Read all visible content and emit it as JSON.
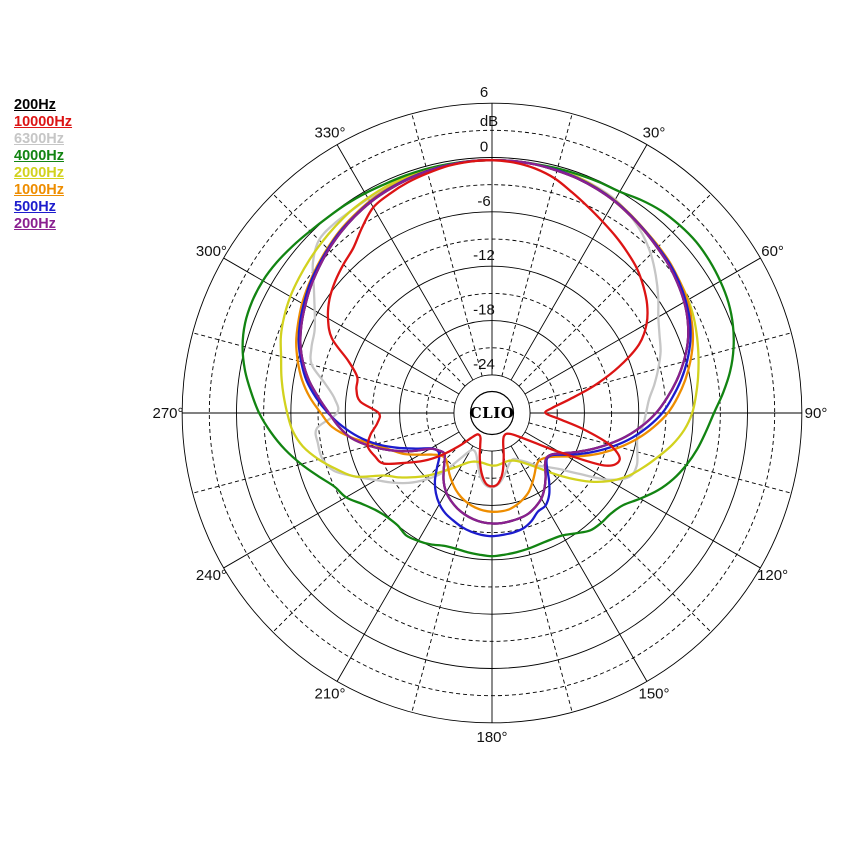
{
  "legend": {
    "items": [
      {
        "label": "200Hz",
        "color": "#000000"
      },
      {
        "label": "10000Hz",
        "color": "#dc1414"
      },
      {
        "label": "6300Hz",
        "color": "#c6c6c6"
      },
      {
        "label": "4000Hz",
        "color": "#128412"
      },
      {
        "label": "2000Hz",
        "color": "#d2d21e"
      },
      {
        "label": "1000Hz",
        "color": "#ee8d00"
      },
      {
        "label": "500Hz",
        "color": "#1c1ccd"
      },
      {
        "label": "200Hz",
        "color": "#8a2090"
      }
    ]
  },
  "chart_data": {
    "type": "line",
    "subtype": "polar-directivity",
    "center_label": "CLIO",
    "angle_step_deg": 5,
    "angle_tick_labels": [
      {
        "deg": 30,
        "label": "30°"
      },
      {
        "deg": 60,
        "label": "60°"
      },
      {
        "deg": 90,
        "label": "90°"
      },
      {
        "deg": 120,
        "label": "120°"
      },
      {
        "deg": 150,
        "label": "150°"
      },
      {
        "deg": 180,
        "label": "180°"
      },
      {
        "deg": 210,
        "label": "210°"
      },
      {
        "deg": 240,
        "label": "240°"
      },
      {
        "deg": 270,
        "label": "270°"
      },
      {
        "deg": 300,
        "label": "300°"
      },
      {
        "deg": 330,
        "label": "330°"
      }
    ],
    "radial_axis": {
      "unit_label": "dB",
      "max_db": 6,
      "min_db": -27,
      "ring_values_db": [
        6,
        3,
        0,
        -3,
        -6,
        -9,
        -12,
        -15,
        -18,
        -21,
        -24
      ],
      "tick_labels": [
        {
          "db": 6,
          "label": "6"
        },
        {
          "db": 0,
          "label": "0"
        },
        {
          "db": -6,
          "label": "-6"
        },
        {
          "db": -12,
          "label": "-12"
        },
        {
          "db": -18,
          "label": "-18"
        },
        {
          "db": -24,
          "label": "-24"
        }
      ]
    },
    "series": [
      {
        "name": "200Hz",
        "color": "#000000",
        "z": 0,
        "values_db": [
          -0.3,
          -0.3,
          -0.35,
          -0.5,
          -0.65,
          -0.9,
          -1.2,
          -1.6,
          -2.0,
          -2.4,
          -2.75,
          -3.2,
          -3.7,
          -4.35,
          -5.2,
          -6.3,
          -7.5,
          -8.8,
          -10.1,
          -11.6,
          -13.2,
          -14.9,
          -16.5,
          -18.0,
          -19.3,
          -20.2,
          -20.4,
          -19.9,
          -19.0,
          -18.1,
          -17.3,
          -16.8,
          -16.4,
          -16.2,
          -16.1,
          -16.0,
          -16.0,
          -16.1,
          -16.3,
          -16.6,
          -17.0,
          -17.5,
          -18.1,
          -18.9,
          -19.9,
          -20.8,
          -21.3,
          -21.0,
          -20.3,
          -18.2,
          -16.2,
          -14.2,
          -12.4,
          -11.2,
          -10.2,
          -9.0,
          -7.7,
          -6.6,
          -5.7,
          -5.0,
          -4.4,
          -3.8,
          -3.25,
          -2.7,
          -2.2,
          -1.75,
          -1.35,
          -1.05,
          -0.8,
          -0.6,
          -0.45,
          -0.32
        ]
      },
      {
        "name": "6300Hz",
        "color": "#c6c6c6",
        "z": 1,
        "values_db": [
          -0.3,
          -0.3,
          -0.35,
          -0.4,
          -0.5,
          -0.7,
          -1.0,
          -1.6,
          -2.4,
          -3.4,
          -4.6,
          -5.8,
          -7.0,
          -7.8,
          -8.4,
          -9.2,
          -10.0,
          -10.8,
          -11.2,
          -11.5,
          -11.9,
          -11.6,
          -11.2,
          -11.5,
          -13.5,
          -16.5,
          -18.6,
          -19.8,
          -20.7,
          -21.6,
          -22.2,
          -22.6,
          -22.4,
          -21.8,
          -21.0,
          -20.3,
          -20.0,
          -20.2,
          -21.0,
          -22.2,
          -23.2,
          -23.6,
          -23.4,
          -22.0,
          -19.5,
          -17.8,
          -16.2,
          -14.8,
          -13.4,
          -11.6,
          -9.6,
          -8.8,
          -8.7,
          -8.8,
          -11.1,
          -10.8,
          -9.5,
          -7.6,
          -7.0,
          -6.6,
          -5.6,
          -4.2,
          -2.4,
          -1.2,
          -1.0,
          -1.0,
          -0.9,
          -0.8,
          -0.6,
          -0.5,
          -0.4,
          -0.3
        ]
      },
      {
        "name": "2000Hz",
        "color": "#d2d21e",
        "z": 2,
        "values_db": [
          -0.3,
          -0.3,
          -0.35,
          -0.4,
          -0.5,
          -0.8,
          -1.2,
          -1.6,
          -2.0,
          -2.3,
          -2.6,
          -2.9,
          -3.2,
          -3.6,
          -4.1,
          -4.6,
          -5.1,
          -5.6,
          -6.1,
          -6.9,
          -8.0,
          -9.3,
          -10.5,
          -11.7,
          -13.2,
          -15.0,
          -17.0,
          -18.8,
          -20.3,
          -21.3,
          -22.0,
          -22.4,
          -22.6,
          -22.6,
          -22.5,
          -22.4,
          -22.4,
          -22.5,
          -22.6,
          -22.6,
          -22.5,
          -22.2,
          -21.6,
          -20.8,
          -19.8,
          -18.5,
          -17.2,
          -15.8,
          -14.4,
          -11.6,
          -10.0,
          -8.4,
          -7.0,
          -6.1,
          -5.6,
          -5.1,
          -4.6,
          -4.1,
          -3.4,
          -2.9,
          -2.5,
          -2.2,
          -1.9,
          -1.6,
          -1.3,
          -1.0,
          -0.8,
          -0.6,
          -0.5,
          -0.4,
          -0.35,
          -0.3
        ]
      },
      {
        "name": "4000Hz",
        "color": "#128412",
        "z": 3,
        "values_db": [
          -0.3,
          -0.3,
          -0.3,
          -0.25,
          -0.2,
          -0.1,
          0.0,
          0.5,
          0.9,
          1.1,
          1.2,
          1.1,
          0.9,
          0.6,
          0.1,
          -0.6,
          -1.5,
          -2.6,
          -3.7,
          -4.5,
          -5.2,
          -6.0,
          -6.9,
          -8.0,
          -9.3,
          -10.5,
          -11.0,
          -11.1,
          -11.3,
          -12.0,
          -12.6,
          -12.8,
          -12.8,
          -12.7,
          -12.6,
          -12.5,
          -12.4,
          -12.5,
          -12.6,
          -12.7,
          -12.6,
          -12.2,
          -11.9,
          -11.7,
          -12.0,
          -11.9,
          -11.5,
          -10.7,
          -9.6,
          -9.0,
          -7.8,
          -6.4,
          -5.0,
          -3.7,
          -2.5,
          -1.5,
          -0.5,
          0.3,
          0.8,
          1.0,
          1.0,
          0.8,
          0.5,
          0.2,
          0.0,
          -0.1,
          -0.2,
          -0.3,
          -0.3,
          -0.3,
          -0.3,
          -0.3
        ]
      },
      {
        "name": "1000Hz",
        "color": "#ee8d00",
        "z": 4,
        "values_db": [
          -0.3,
          -0.3,
          -0.35,
          -0.45,
          -0.6,
          -0.8,
          -1.1,
          -1.5,
          -1.9,
          -2.2,
          -2.5,
          -2.9,
          -3.3,
          -3.9,
          -4.6,
          -5.5,
          -6.5,
          -7.6,
          -8.8,
          -10.3,
          -11.9,
          -13.6,
          -15.3,
          -17.0,
          -18.6,
          -19.8,
          -20.5,
          -20.8,
          -20.6,
          -20.0,
          -19.3,
          -18.6,
          -18.1,
          -17.7,
          -17.4,
          -17.3,
          -17.3,
          -17.4,
          -17.6,
          -17.9,
          -18.3,
          -18.8,
          -19.4,
          -20.0,
          -20.6,
          -21.0,
          -20.9,
          -20.2,
          -19.0,
          -17.5,
          -16.3,
          -14.8,
          -12.5,
          -10.5,
          -9.3,
          -8.0,
          -6.9,
          -6.0,
          -5.2,
          -4.6,
          -4.0,
          -3.5,
          -3.0,
          -2.5,
          -2.0,
          -1.6,
          -1.2,
          -0.9,
          -0.7,
          -0.5,
          -0.4,
          -0.3
        ]
      },
      {
        "name": "500Hz",
        "color": "#1c1ccd",
        "z": 5,
        "values_db": [
          -0.3,
          -0.3,
          -0.35,
          -0.45,
          -0.6,
          -0.85,
          -1.15,
          -1.55,
          -1.95,
          -2.3,
          -2.6,
          -3.0,
          -3.5,
          -4.1,
          -4.9,
          -5.9,
          -7.0,
          -8.2,
          -9.4,
          -10.9,
          -12.5,
          -14.2,
          -15.9,
          -17.5,
          -19.0,
          -20.1,
          -20.3,
          -19.6,
          -18.4,
          -17.2,
          -16.4,
          -16.2,
          -15.5,
          -15.0,
          -14.8,
          -14.7,
          -14.6,
          -14.7,
          -14.9,
          -15.2,
          -15.6,
          -16.0,
          -16.6,
          -17.4,
          -18.4,
          -19.6,
          -20.6,
          -20.9,
          -20.4,
          -18.9,
          -17.0,
          -15.0,
          -13.2,
          -11.6,
          -10.1,
          -8.7,
          -7.4,
          -6.4,
          -5.5,
          -4.8,
          -4.2,
          -3.6,
          -3.1,
          -2.6,
          -2.1,
          -1.7,
          -1.3,
          -1.0,
          -0.75,
          -0.55,
          -0.4,
          -0.3
        ]
      },
      {
        "name": "200Hz",
        "color": "#8a2090",
        "z": 6,
        "values_db": [
          -0.3,
          -0.3,
          -0.35,
          -0.5,
          -0.65,
          -0.9,
          -1.2,
          -1.6,
          -2.0,
          -2.4,
          -2.75,
          -3.2,
          -3.7,
          -4.35,
          -5.2,
          -6.3,
          -7.5,
          -8.8,
          -10.1,
          -11.6,
          -13.2,
          -14.9,
          -16.5,
          -18.0,
          -19.3,
          -20.2,
          -20.4,
          -19.9,
          -19.0,
          -18.1,
          -17.3,
          -16.8,
          -16.4,
          -16.2,
          -16.1,
          -16.0,
          -16.0,
          -16.1,
          -16.3,
          -16.6,
          -17.0,
          -17.5,
          -18.1,
          -18.9,
          -19.9,
          -20.8,
          -21.3,
          -21.0,
          -20.3,
          -18.2,
          -16.2,
          -14.2,
          -12.4,
          -11.2,
          -10.2,
          -9.0,
          -7.7,
          -6.6,
          -5.7,
          -5.0,
          -4.4,
          -3.8,
          -3.25,
          -2.7,
          -2.2,
          -1.75,
          -1.35,
          -1.05,
          -0.8,
          -0.6,
          -0.45,
          -0.32
        ]
      },
      {
        "name": "10000Hz",
        "color": "#dc1414",
        "z": 7,
        "values_db": [
          -0.3,
          -0.45,
          -0.8,
          -1.4,
          -2.3,
          -3.1,
          -3.8,
          -4.4,
          -5.0,
          -5.6,
          -6.4,
          -7.3,
          -8.5,
          -10.3,
          -13.3,
          -16.5,
          -19.5,
          -21.5,
          -22.3,
          -20.8,
          -18.0,
          -14.8,
          -13.2,
          -14.5,
          -19.5,
          -22.5,
          -24.0,
          -24.8,
          -25.2,
          -25.4,
          -25.4,
          -25.2,
          -24.6,
          -23.2,
          -21.5,
          -20.4,
          -20.1,
          -20.4,
          -21.5,
          -23.0,
          -24.4,
          -25.2,
          -25.4,
          -25.3,
          -24.6,
          -23.0,
          -21.0,
          -19.0,
          -17.2,
          -15.0,
          -14.4,
          -14.0,
          -14.6,
          -15.5,
          -15.7,
          -13.6,
          -13.0,
          -12.8,
          -11.3,
          -8.7,
          -7.3,
          -6.3,
          -5.6,
          -5.0,
          -4.4,
          -3.2,
          -2.0,
          -1.5,
          -1.1,
          -0.8,
          -0.5,
          -0.35
        ]
      }
    ]
  }
}
